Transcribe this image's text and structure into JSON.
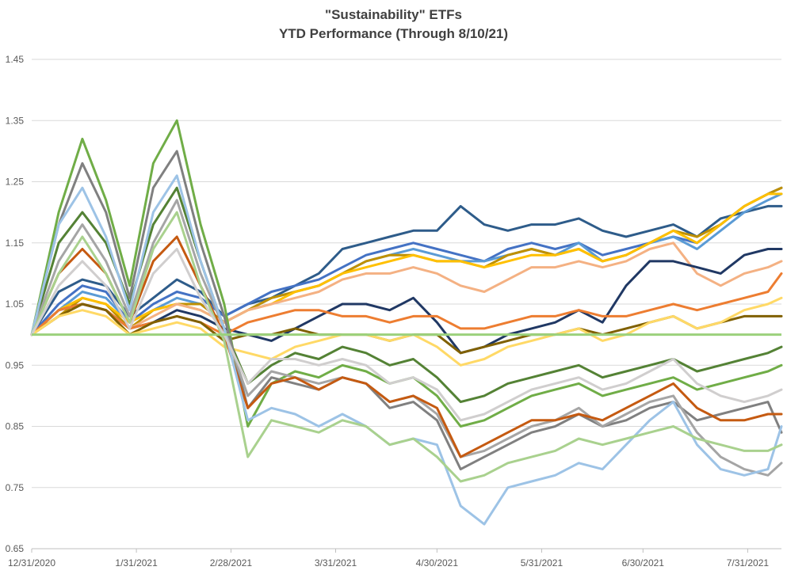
{
  "chart_data": {
    "type": "line",
    "title": "\"Sustainability\" ETFs",
    "subtitle": "YTD Performance (Through 8/10/21)",
    "xlabel": "",
    "ylabel": "",
    "ylim": [
      0.65,
      1.45
    ],
    "yticks": [
      "0.65",
      "0.75",
      "0.85",
      "0.95",
      "1.05",
      "1.15",
      "1.25",
      "1.35",
      "1.45"
    ],
    "xticks": [
      "12/31/2020",
      "1/31/2021",
      "2/28/2021",
      "3/31/2021",
      "4/30/2021",
      "5/31/2021",
      "6/30/2021",
      "7/31/2021"
    ],
    "grid": true,
    "legend": "none",
    "baseline": 1.0,
    "baseline_color": "#9bd17c",
    "x": [
      "12/31/2020",
      "1/8/2021",
      "1/15/2021",
      "1/22/2021",
      "1/29/2021",
      "2/5/2021",
      "2/12/2021",
      "2/19/2021",
      "2/26/2021",
      "3/5/2021",
      "3/12/2021",
      "3/19/2021",
      "3/26/2021",
      "4/2/2021",
      "4/9/2021",
      "4/16/2021",
      "4/23/2021",
      "4/30/2021",
      "5/7/2021",
      "5/14/2021",
      "5/21/2021",
      "5/28/2021",
      "6/4/2021",
      "6/11/2021",
      "6/18/2021",
      "6/25/2021",
      "7/2/2021",
      "7/9/2021",
      "7/16/2021",
      "7/23/2021",
      "7/30/2021",
      "8/6/2021",
      "8/10/2021"
    ],
    "series": [
      {
        "color": "#2e5c8a",
        "values": [
          1.0,
          1.07,
          1.09,
          1.08,
          1.03,
          1.06,
          1.09,
          1.07,
          1.03,
          1.05,
          1.06,
          1.08,
          1.1,
          1.14,
          1.15,
          1.16,
          1.17,
          1.17,
          1.21,
          1.18,
          1.17,
          1.18,
          1.18,
          1.19,
          1.17,
          1.16,
          1.17,
          1.18,
          1.16,
          1.19,
          1.2,
          1.21,
          1.21
        ]
      },
      {
        "color": "#4472c4",
        "values": [
          1.0,
          1.05,
          1.08,
          1.07,
          1.02,
          1.05,
          1.07,
          1.06,
          1.03,
          1.05,
          1.07,
          1.08,
          1.09,
          1.11,
          1.13,
          1.14,
          1.15,
          1.14,
          1.13,
          1.12,
          1.14,
          1.15,
          1.14,
          1.15,
          1.13,
          1.14,
          1.15,
          1.16,
          1.15,
          1.18,
          1.21,
          1.23,
          1.24
        ]
      },
      {
        "color": "#5b9bd5",
        "values": [
          1.0,
          1.04,
          1.07,
          1.06,
          1.02,
          1.04,
          1.06,
          1.05,
          1.02,
          1.04,
          1.06,
          1.07,
          1.08,
          1.1,
          1.12,
          1.13,
          1.14,
          1.13,
          1.12,
          1.12,
          1.13,
          1.14,
          1.13,
          1.15,
          1.12,
          1.13,
          1.15,
          1.16,
          1.14,
          1.17,
          1.2,
          1.22,
          1.23
        ]
      },
      {
        "color": "#bf9000",
        "values": [
          1.0,
          1.03,
          1.06,
          1.05,
          1.01,
          1.04,
          1.05,
          1.05,
          1.02,
          1.04,
          1.06,
          1.07,
          1.08,
          1.1,
          1.12,
          1.13,
          1.13,
          1.12,
          1.12,
          1.11,
          1.13,
          1.14,
          1.13,
          1.14,
          1.12,
          1.13,
          1.15,
          1.17,
          1.16,
          1.18,
          1.21,
          1.23,
          1.24
        ]
      },
      {
        "color": "#ffc000",
        "values": [
          1.0,
          1.04,
          1.06,
          1.05,
          1.02,
          1.04,
          1.05,
          1.04,
          1.02,
          1.04,
          1.05,
          1.07,
          1.08,
          1.1,
          1.11,
          1.12,
          1.13,
          1.12,
          1.12,
          1.11,
          1.12,
          1.13,
          1.13,
          1.14,
          1.12,
          1.13,
          1.15,
          1.17,
          1.15,
          1.18,
          1.21,
          1.23,
          1.23
        ]
      },
      {
        "color": "#f4b183",
        "values": [
          1.0,
          1.04,
          1.05,
          1.04,
          1.01,
          1.03,
          1.05,
          1.04,
          1.02,
          1.04,
          1.05,
          1.06,
          1.07,
          1.09,
          1.1,
          1.1,
          1.11,
          1.1,
          1.08,
          1.07,
          1.09,
          1.11,
          1.11,
          1.12,
          1.11,
          1.12,
          1.14,
          1.15,
          1.1,
          1.08,
          1.1,
          1.11,
          1.12
        ]
      },
      {
        "color": "#203864",
        "values": [
          1.0,
          1.04,
          1.05,
          1.04,
          1.01,
          1.02,
          1.04,
          1.03,
          1.01,
          1.0,
          0.99,
          1.01,
          1.03,
          1.05,
          1.05,
          1.04,
          1.06,
          1.02,
          0.97,
          0.98,
          1.0,
          1.01,
          1.02,
          1.04,
          1.02,
          1.08,
          1.12,
          1.12,
          1.11,
          1.1,
          1.13,
          1.14,
          1.14
        ]
      },
      {
        "color": "#ed7d31",
        "values": [
          1.0,
          1.04,
          1.05,
          1.04,
          1.01,
          1.02,
          1.03,
          1.02,
          1.0,
          1.02,
          1.03,
          1.04,
          1.04,
          1.03,
          1.03,
          1.02,
          1.03,
          1.03,
          1.01,
          1.01,
          1.02,
          1.03,
          1.03,
          1.04,
          1.03,
          1.03,
          1.04,
          1.05,
          1.04,
          1.05,
          1.06,
          1.07,
          1.1
        ]
      },
      {
        "color": "#806000",
        "values": [
          1.0,
          1.03,
          1.05,
          1.04,
          1.0,
          1.02,
          1.03,
          1.02,
          0.99,
          1.0,
          1.0,
          1.01,
          1.0,
          1.0,
          1.0,
          0.99,
          1.0,
          1.0,
          0.97,
          0.98,
          0.99,
          1.0,
          1.0,
          1.01,
          1.0,
          1.01,
          1.02,
          1.03,
          1.01,
          1.02,
          1.03,
          1.03,
          1.03
        ]
      },
      {
        "color": "#ffd966",
        "values": [
          1.0,
          1.03,
          1.04,
          1.03,
          1.0,
          1.01,
          1.02,
          1.01,
          0.98,
          0.97,
          0.96,
          0.98,
          0.99,
          1.0,
          1.0,
          0.99,
          1.0,
          0.98,
          0.95,
          0.96,
          0.98,
          0.99,
          1.0,
          1.01,
          0.99,
          1.0,
          1.02,
          1.03,
          1.01,
          1.02,
          1.04,
          1.05,
          1.06
        ]
      },
      {
        "color": "#548235",
        "values": [
          1.0,
          1.15,
          1.2,
          1.15,
          1.05,
          1.18,
          1.24,
          1.12,
          1.01,
          0.92,
          0.95,
          0.97,
          0.96,
          0.98,
          0.97,
          0.95,
          0.96,
          0.93,
          0.89,
          0.9,
          0.92,
          0.93,
          0.94,
          0.95,
          0.93,
          0.94,
          0.95,
          0.96,
          0.94,
          0.95,
          0.96,
          0.97,
          0.98
        ]
      },
      {
        "color": "#70ad47",
        "values": [
          1.0,
          1.2,
          1.32,
          1.22,
          1.08,
          1.28,
          1.35,
          1.18,
          1.05,
          0.85,
          0.92,
          0.94,
          0.93,
          0.95,
          0.94,
          0.92,
          0.93,
          0.9,
          0.85,
          0.86,
          0.88,
          0.9,
          0.91,
          0.92,
          0.9,
          0.91,
          0.92,
          0.93,
          0.91,
          0.92,
          0.93,
          0.94,
          0.95
        ]
      },
      {
        "color": "#808080",
        "values": [
          1.0,
          1.18,
          1.28,
          1.2,
          1.06,
          1.24,
          1.3,
          1.15,
          1.03,
          0.88,
          0.93,
          0.92,
          0.91,
          0.93,
          0.92,
          0.88,
          0.89,
          0.86,
          0.78,
          0.8,
          0.82,
          0.84,
          0.85,
          0.87,
          0.85,
          0.86,
          0.88,
          0.89,
          0.86,
          0.87,
          0.88,
          0.89,
          0.84
        ]
      },
      {
        "color": "#a5a5a5",
        "values": [
          1.0,
          1.12,
          1.18,
          1.12,
          1.03,
          1.15,
          1.22,
          1.1,
          1.01,
          0.9,
          0.94,
          0.93,
          0.92,
          0.93,
          0.92,
          0.89,
          0.9,
          0.87,
          0.8,
          0.81,
          0.83,
          0.85,
          0.86,
          0.88,
          0.85,
          0.87,
          0.89,
          0.9,
          0.84,
          0.8,
          0.78,
          0.77,
          0.79
        ]
      },
      {
        "color": "#c55a11",
        "values": [
          1.0,
          1.1,
          1.14,
          1.1,
          1.02,
          1.12,
          1.16,
          1.08,
          1.0,
          0.88,
          0.92,
          0.93,
          0.91,
          0.93,
          0.92,
          0.89,
          0.9,
          0.88,
          0.8,
          0.82,
          0.84,
          0.86,
          0.86,
          0.87,
          0.86,
          0.88,
          0.9,
          0.92,
          0.88,
          0.86,
          0.86,
          0.87,
          0.87
        ]
      },
      {
        "color": "#9dc3e6",
        "values": [
          1.0,
          1.18,
          1.24,
          1.16,
          1.04,
          1.2,
          1.26,
          1.12,
          1.01,
          0.86,
          0.88,
          0.87,
          0.85,
          0.87,
          0.85,
          0.82,
          0.83,
          0.82,
          0.72,
          0.69,
          0.75,
          0.76,
          0.77,
          0.79,
          0.78,
          0.82,
          0.86,
          0.89,
          0.82,
          0.78,
          0.77,
          0.78,
          0.85
        ]
      },
      {
        "color": "#a9d18e",
        "values": [
          1.0,
          1.1,
          1.16,
          1.1,
          1.02,
          1.14,
          1.2,
          1.08,
          0.99,
          0.8,
          0.86,
          0.85,
          0.84,
          0.86,
          0.85,
          0.82,
          0.83,
          0.8,
          0.76,
          0.77,
          0.79,
          0.8,
          0.81,
          0.83,
          0.82,
          0.83,
          0.84,
          0.85,
          0.83,
          0.82,
          0.81,
          0.81,
          0.82
        ]
      },
      {
        "color": "#d0cece",
        "values": [
          1.0,
          1.08,
          1.12,
          1.08,
          1.01,
          1.1,
          1.14,
          1.06,
          1.0,
          0.92,
          0.96,
          0.96,
          0.95,
          0.96,
          0.95,
          0.92,
          0.93,
          0.91,
          0.86,
          0.87,
          0.89,
          0.91,
          0.92,
          0.93,
          0.91,
          0.92,
          0.94,
          0.96,
          0.92,
          0.9,
          0.89,
          0.9,
          0.91
        ]
      }
    ]
  }
}
